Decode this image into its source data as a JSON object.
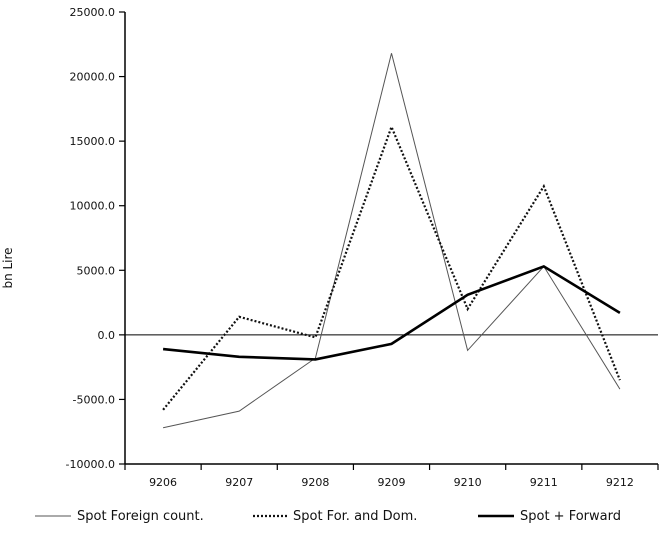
{
  "chart_data": {
    "type": "line",
    "title": "",
    "xlabel": "",
    "ylabel": "bn Lire",
    "categories": [
      "9206",
      "9207",
      "9208",
      "9209",
      "9210",
      "9211",
      "9212"
    ],
    "ylim": [
      -10000,
      25000
    ],
    "yticks": [
      -10000,
      -5000,
      0,
      5000,
      10000,
      15000,
      20000,
      25000
    ],
    "ytick_labels": [
      "-10000.0",
      "-5000.0",
      "0.0",
      "5000.0",
      "10000.0",
      "15000.0",
      "20000.0",
      "25000.0"
    ],
    "grid": false,
    "zero_line": true,
    "legend_position": "bottom",
    "series": [
      {
        "name": "Spot Foreign count.",
        "style": "thin",
        "color": "#555555",
        "values": [
          -7200,
          -5900,
          -1800,
          21800,
          -1200,
          5300,
          -4200
        ]
      },
      {
        "name": "Spot For. and Dom.",
        "style": "dotted",
        "color": "#111111",
        "values": [
          -5800,
          1400,
          -200,
          16100,
          2000,
          11500,
          -3500
        ]
      },
      {
        "name": "Spot + Forward",
        "style": "thick",
        "color": "#000000",
        "values": [
          -1100,
          -1700,
          -1900,
          -700,
          3100,
          5300,
          1700
        ]
      }
    ]
  }
}
